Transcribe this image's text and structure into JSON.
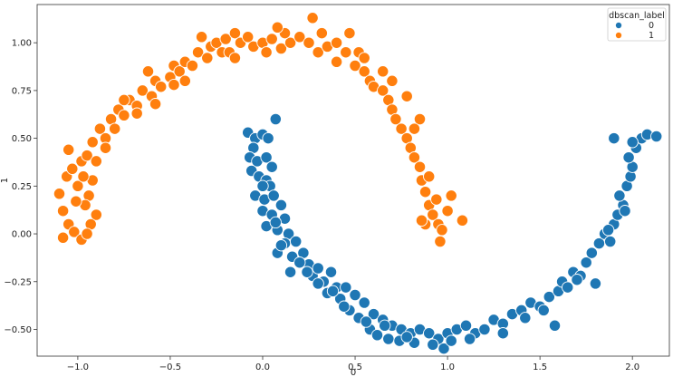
{
  "chart_data": {
    "type": "scatter",
    "title": "",
    "xlabel": "0",
    "ylabel": "1",
    "xlim": [
      -1.22,
      2.2
    ],
    "ylim": [
      -0.64,
      1.2
    ],
    "xticks": [
      -1.0,
      -0.5,
      0.0,
      0.5,
      1.0,
      1.5,
      2.0
    ],
    "xtick_labels": [
      "−1.0",
      "−0.5",
      "0.0",
      "0.5",
      "1.0",
      "1.5",
      "2.0"
    ],
    "yticks": [
      -0.5,
      -0.25,
      0.0,
      0.25,
      0.5,
      0.75,
      1.0
    ],
    "ytick_labels": [
      "−0.50",
      "−0.25",
      "0.00",
      "0.25",
      "0.50",
      "0.75",
      "1.00"
    ],
    "grid": false,
    "legend": {
      "title": "dbscan_label",
      "placement": "top-right",
      "entries": [
        "0",
        "1"
      ]
    },
    "series": [
      {
        "name": "0",
        "color": "#1f77b4",
        "points": [
          [
            -0.08,
            0.53
          ],
          [
            -0.04,
            0.5
          ],
          [
            -0.05,
            0.45
          ],
          [
            0.0,
            0.52
          ],
          [
            0.03,
            0.5
          ],
          [
            0.07,
            0.6
          ],
          [
            -0.07,
            0.4
          ],
          [
            -0.03,
            0.38
          ],
          [
            0.02,
            0.4
          ],
          [
            0.05,
            0.35
          ],
          [
            -0.06,
            0.33
          ],
          [
            -0.02,
            0.3
          ],
          [
            0.02,
            0.28
          ],
          [
            0.04,
            0.25
          ],
          [
            -0.04,
            0.2
          ],
          [
            0.01,
            0.18
          ],
          [
            0.06,
            0.2
          ],
          [
            0.0,
            0.12
          ],
          [
            0.05,
            0.1
          ],
          [
            0.1,
            0.15
          ],
          [
            0.12,
            0.08
          ],
          [
            0.02,
            0.04
          ],
          [
            0.08,
            0.02
          ],
          [
            0.14,
            0.0
          ],
          [
            0.12,
            -0.05
          ],
          [
            0.18,
            -0.04
          ],
          [
            0.08,
            -0.1
          ],
          [
            0.16,
            -0.12
          ],
          [
            0.22,
            -0.1
          ],
          [
            0.15,
            -0.2
          ],
          [
            0.25,
            -0.16
          ],
          [
            0.27,
            -0.22
          ],
          [
            0.3,
            -0.18
          ],
          [
            0.33,
            -0.25
          ],
          [
            0.37,
            -0.2
          ],
          [
            0.35,
            -0.31
          ],
          [
            0.4,
            -0.28
          ],
          [
            0.45,
            -0.28
          ],
          [
            0.42,
            -0.34
          ],
          [
            0.5,
            -0.32
          ],
          [
            0.47,
            -0.4
          ],
          [
            0.55,
            -0.36
          ],
          [
            0.52,
            -0.44
          ],
          [
            0.6,
            -0.42
          ],
          [
            0.58,
            -0.5
          ],
          [
            0.65,
            -0.45
          ],
          [
            0.62,
            -0.53
          ],
          [
            0.7,
            -0.48
          ],
          [
            0.68,
            -0.55
          ],
          [
            0.75,
            -0.5
          ],
          [
            0.74,
            -0.56
          ],
          [
            0.8,
            -0.52
          ],
          [
            0.85,
            -0.5
          ],
          [
            0.82,
            -0.57
          ],
          [
            0.9,
            -0.52
          ],
          [
            0.95,
            -0.55
          ],
          [
            0.98,
            -0.6
          ],
          [
            1.0,
            -0.52
          ],
          [
            1.05,
            -0.5
          ],
          [
            1.02,
            -0.56
          ],
          [
            1.1,
            -0.48
          ],
          [
            1.15,
            -0.52
          ],
          [
            1.2,
            -0.5
          ],
          [
            1.25,
            -0.45
          ],
          [
            1.3,
            -0.47
          ],
          [
            1.35,
            -0.42
          ],
          [
            1.4,
            -0.4
          ],
          [
            1.45,
            -0.36
          ],
          [
            1.5,
            -0.38
          ],
          [
            1.55,
            -0.33
          ],
          [
            1.58,
            -0.48
          ],
          [
            1.6,
            -0.3
          ],
          [
            1.62,
            -0.25
          ],
          [
            1.65,
            -0.28
          ],
          [
            1.68,
            -0.2
          ],
          [
            1.72,
            -0.22
          ],
          [
            1.75,
            -0.15
          ],
          [
            1.78,
            -0.1
          ],
          [
            1.82,
            -0.05
          ],
          [
            1.85,
            0.0
          ],
          [
            1.88,
            -0.04
          ],
          [
            1.8,
            -0.26
          ],
          [
            1.9,
            0.05
          ],
          [
            1.92,
            0.1
          ],
          [
            1.95,
            0.15
          ],
          [
            1.93,
            0.2
          ],
          [
            1.97,
            0.25
          ],
          [
            1.99,
            0.3
          ],
          [
            2.0,
            0.35
          ],
          [
            1.98,
            0.4
          ],
          [
            2.02,
            0.45
          ],
          [
            2.05,
            0.5
          ],
          [
            2.08,
            0.52
          ],
          [
            2.0,
            0.48
          ],
          [
            1.9,
            0.5
          ],
          [
            2.13,
            0.51
          ],
          [
            1.96,
            0.12
          ],
          [
            1.87,
            0.02
          ],
          [
            1.7,
            -0.24
          ],
          [
            1.52,
            -0.4
          ],
          [
            1.42,
            -0.44
          ],
          [
            1.3,
            -0.52
          ],
          [
            1.12,
            -0.55
          ],
          [
            0.92,
            -0.58
          ],
          [
            0.78,
            -0.54
          ],
          [
            0.66,
            -0.48
          ],
          [
            0.56,
            -0.46
          ],
          [
            0.44,
            -0.38
          ],
          [
            0.38,
            -0.3
          ],
          [
            0.3,
            -0.26
          ],
          [
            0.24,
            -0.2
          ],
          [
            0.2,
            -0.15
          ],
          [
            0.1,
            -0.06
          ],
          [
            0.07,
            0.06
          ],
          [
            0.0,
            0.25
          ]
        ]
      },
      {
        "name": "1",
        "color": "#ff7f0e",
        "points": [
          [
            -1.1,
            0.21
          ],
          [
            -1.08,
            0.12
          ],
          [
            -1.05,
            0.05
          ],
          [
            -1.08,
            -0.02
          ],
          [
            -1.02,
            0.01
          ],
          [
            -0.98,
            -0.03
          ],
          [
            -1.06,
            0.3
          ],
          [
            -1.03,
            0.34
          ],
          [
            -0.98,
            0.38
          ],
          [
            -1.05,
            0.44
          ],
          [
            -0.95,
            0.41
          ],
          [
            -1.0,
            0.25
          ],
          [
            -0.94,
            0.2
          ],
          [
            -0.92,
            0.28
          ],
          [
            -0.9,
            0.1
          ],
          [
            -0.96,
            0.15
          ],
          [
            -0.93,
            0.05
          ],
          [
            -0.92,
            0.48
          ],
          [
            -0.88,
            0.55
          ],
          [
            -0.85,
            0.5
          ],
          [
            -0.82,
            0.6
          ],
          [
            -0.8,
            0.55
          ],
          [
            -0.78,
            0.65
          ],
          [
            -0.75,
            0.62
          ],
          [
            -0.72,
            0.7
          ],
          [
            -0.68,
            0.67
          ],
          [
            -0.65,
            0.75
          ],
          [
            -0.6,
            0.72
          ],
          [
            -0.58,
            0.8
          ],
          [
            -0.55,
            0.77
          ],
          [
            -0.5,
            0.82
          ],
          [
            -0.48,
            0.88
          ],
          [
            -0.45,
            0.85
          ],
          [
            -0.42,
            0.9
          ],
          [
            -0.38,
            0.88
          ],
          [
            -0.35,
            0.95
          ],
          [
            -0.3,
            0.92
          ],
          [
            -0.28,
            0.98
          ],
          [
            -0.25,
            1.0
          ],
          [
            -0.22,
            0.95
          ],
          [
            -0.2,
            1.02
          ],
          [
            -0.15,
            1.05
          ],
          [
            -0.12,
            1.0
          ],
          [
            -0.08,
            1.03
          ],
          [
            -0.05,
            0.98
          ],
          [
            0.0,
            1.0
          ],
          [
            0.02,
            0.95
          ],
          [
            0.05,
            1.02
          ],
          [
            0.1,
            0.97
          ],
          [
            0.15,
            1.0
          ],
          [
            0.2,
            1.03
          ],
          [
            0.25,
            1.0
          ],
          [
            0.27,
            1.13
          ],
          [
            0.3,
            0.95
          ],
          [
            0.35,
            0.98
          ],
          [
            0.4,
            0.9
          ],
          [
            0.45,
            0.95
          ],
          [
            0.47,
            1.05
          ],
          [
            0.5,
            0.88
          ],
          [
            0.55,
            0.85
          ],
          [
            0.58,
            0.8
          ],
          [
            0.6,
            0.77
          ],
          [
            0.65,
            0.75
          ],
          [
            0.68,
            0.7
          ],
          [
            0.7,
            0.65
          ],
          [
            0.72,
            0.6
          ],
          [
            0.75,
            0.55
          ],
          [
            0.78,
            0.5
          ],
          [
            0.8,
            0.45
          ],
          [
            0.82,
            0.4
          ],
          [
            0.85,
            0.35
          ],
          [
            0.86,
            0.28
          ],
          [
            0.88,
            0.22
          ],
          [
            0.9,
            0.15
          ],
          [
            0.92,
            0.1
          ],
          [
            0.88,
            0.05
          ],
          [
            0.95,
            0.05
          ],
          [
            0.97,
            0.02
          ],
          [
            0.96,
            -0.04
          ],
          [
            0.86,
            0.07
          ],
          [
            1.02,
            0.2
          ],
          [
            1.08,
            0.07
          ],
          [
            1.0,
            0.12
          ],
          [
            0.85,
            0.6
          ],
          [
            0.78,
            0.72
          ],
          [
            0.65,
            0.85
          ],
          [
            0.52,
            0.95
          ],
          [
            0.4,
            1.0
          ],
          [
            0.12,
            1.05
          ],
          [
            -0.18,
            0.95
          ],
          [
            -0.33,
            1.03
          ],
          [
            -0.48,
            0.78
          ],
          [
            -0.58,
            0.68
          ],
          [
            -0.68,
            0.63
          ],
          [
            -0.75,
            0.7
          ],
          [
            -0.85,
            0.45
          ],
          [
            -0.9,
            0.38
          ],
          [
            -0.97,
            0.3
          ],
          [
            -1.01,
            0.17
          ],
          [
            -0.95,
            0.0
          ],
          [
            -0.62,
            0.85
          ],
          [
            -0.42,
            0.8
          ],
          [
            -0.15,
            0.92
          ],
          [
            0.08,
            1.08
          ],
          [
            0.32,
            1.05
          ],
          [
            0.55,
            0.92
          ],
          [
            0.7,
            0.8
          ],
          [
            0.82,
            0.55
          ],
          [
            0.9,
            0.3
          ],
          [
            0.94,
            0.18
          ]
        ]
      }
    ]
  }
}
